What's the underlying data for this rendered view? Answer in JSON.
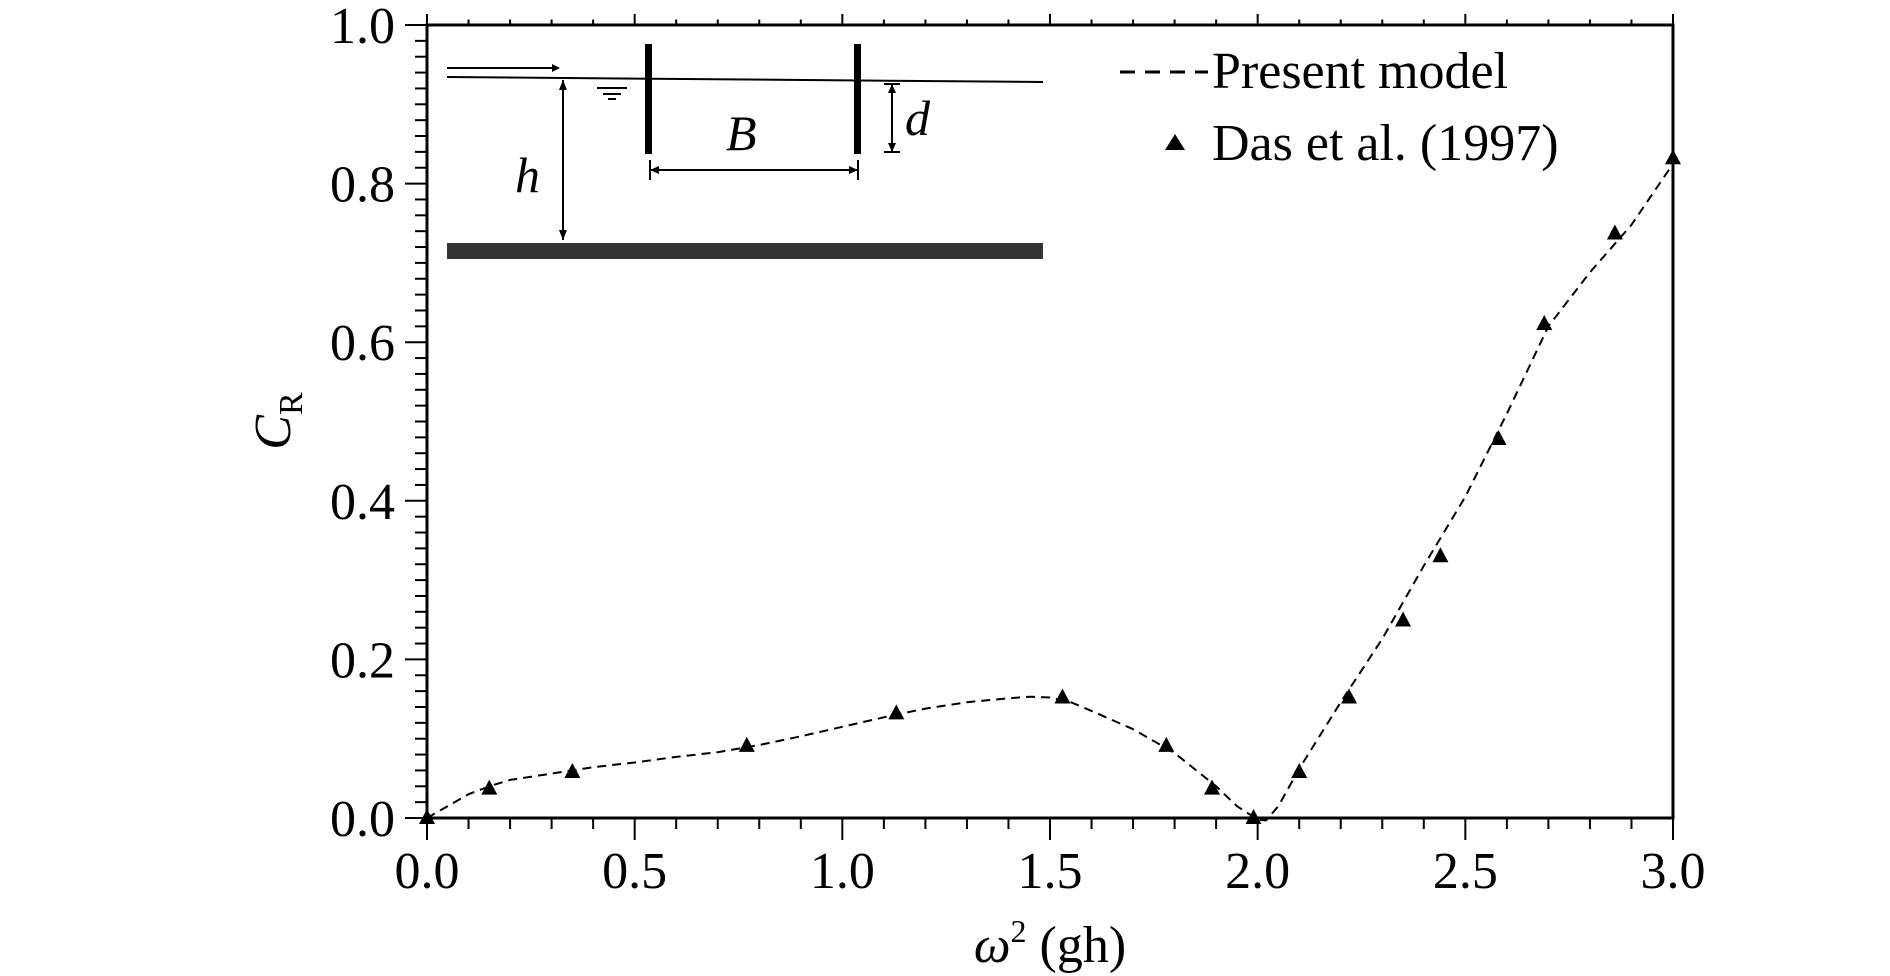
{
  "chart_data": {
    "type": "line",
    "xlabel": {
      "symbol": "ω",
      "sup": "2",
      "rest": " (gh)"
    },
    "ylabel": {
      "symbol": "C",
      "sub": "R"
    },
    "xlim": [
      0.0,
      3.0
    ],
    "ylim": [
      0.0,
      1.0
    ],
    "xticks": [
      "0.0",
      "0.5",
      "1.0",
      "1.5",
      "2.0",
      "2.5",
      "3.0"
    ],
    "yticks": [
      "0.0",
      "0.2",
      "0.4",
      "0.6",
      "0.8",
      "1.0"
    ],
    "grid": false,
    "legend_position": "top-right",
    "series": [
      {
        "name": "Present model",
        "style": "dashed-line",
        "x": [
          0.0,
          0.05,
          0.1,
          0.15,
          0.2,
          0.3,
          0.4,
          0.5,
          0.6,
          0.7,
          0.8,
          0.9,
          1.0,
          1.1,
          1.2,
          1.3,
          1.4,
          1.45,
          1.5,
          1.55,
          1.6,
          1.7,
          1.8,
          1.9,
          1.95,
          2.0,
          2.02,
          2.05,
          2.1,
          2.2,
          2.3,
          2.4,
          2.5,
          2.6,
          2.7,
          2.8,
          2.9,
          3.0
        ],
        "y": [
          0.0,
          0.015,
          0.03,
          0.04,
          0.048,
          0.056,
          0.064,
          0.07,
          0.077,
          0.083,
          0.092,
          0.103,
          0.115,
          0.127,
          0.138,
          0.146,
          0.151,
          0.153,
          0.152,
          0.146,
          0.135,
          0.112,
          0.082,
          0.04,
          0.015,
          -0.002,
          -0.003,
          0.015,
          0.062,
          0.146,
          0.226,
          0.318,
          0.405,
          0.51,
          0.62,
          0.688,
          0.748,
          0.825
        ]
      },
      {
        "name": "Das et al. (1997)",
        "style": "triangle-markers",
        "x": [
          0.0,
          0.15,
          0.35,
          0.77,
          1.13,
          1.53,
          1.78,
          1.89,
          1.99,
          2.1,
          2.22,
          2.35,
          2.44,
          2.58,
          2.69,
          2.86,
          3.0
        ],
        "y": [
          0.0,
          0.037,
          0.058,
          0.091,
          0.132,
          0.152,
          0.091,
          0.037,
          0.0,
          0.058,
          0.152,
          0.249,
          0.33,
          0.478,
          0.623,
          0.737,
          0.832
        ]
      }
    ],
    "inset": {
      "labels": {
        "B": "B",
        "d": "d",
        "h": "h"
      }
    }
  },
  "colors": {
    "ink": "#000000",
    "background": "#ffffff",
    "seabed": "#333333"
  }
}
